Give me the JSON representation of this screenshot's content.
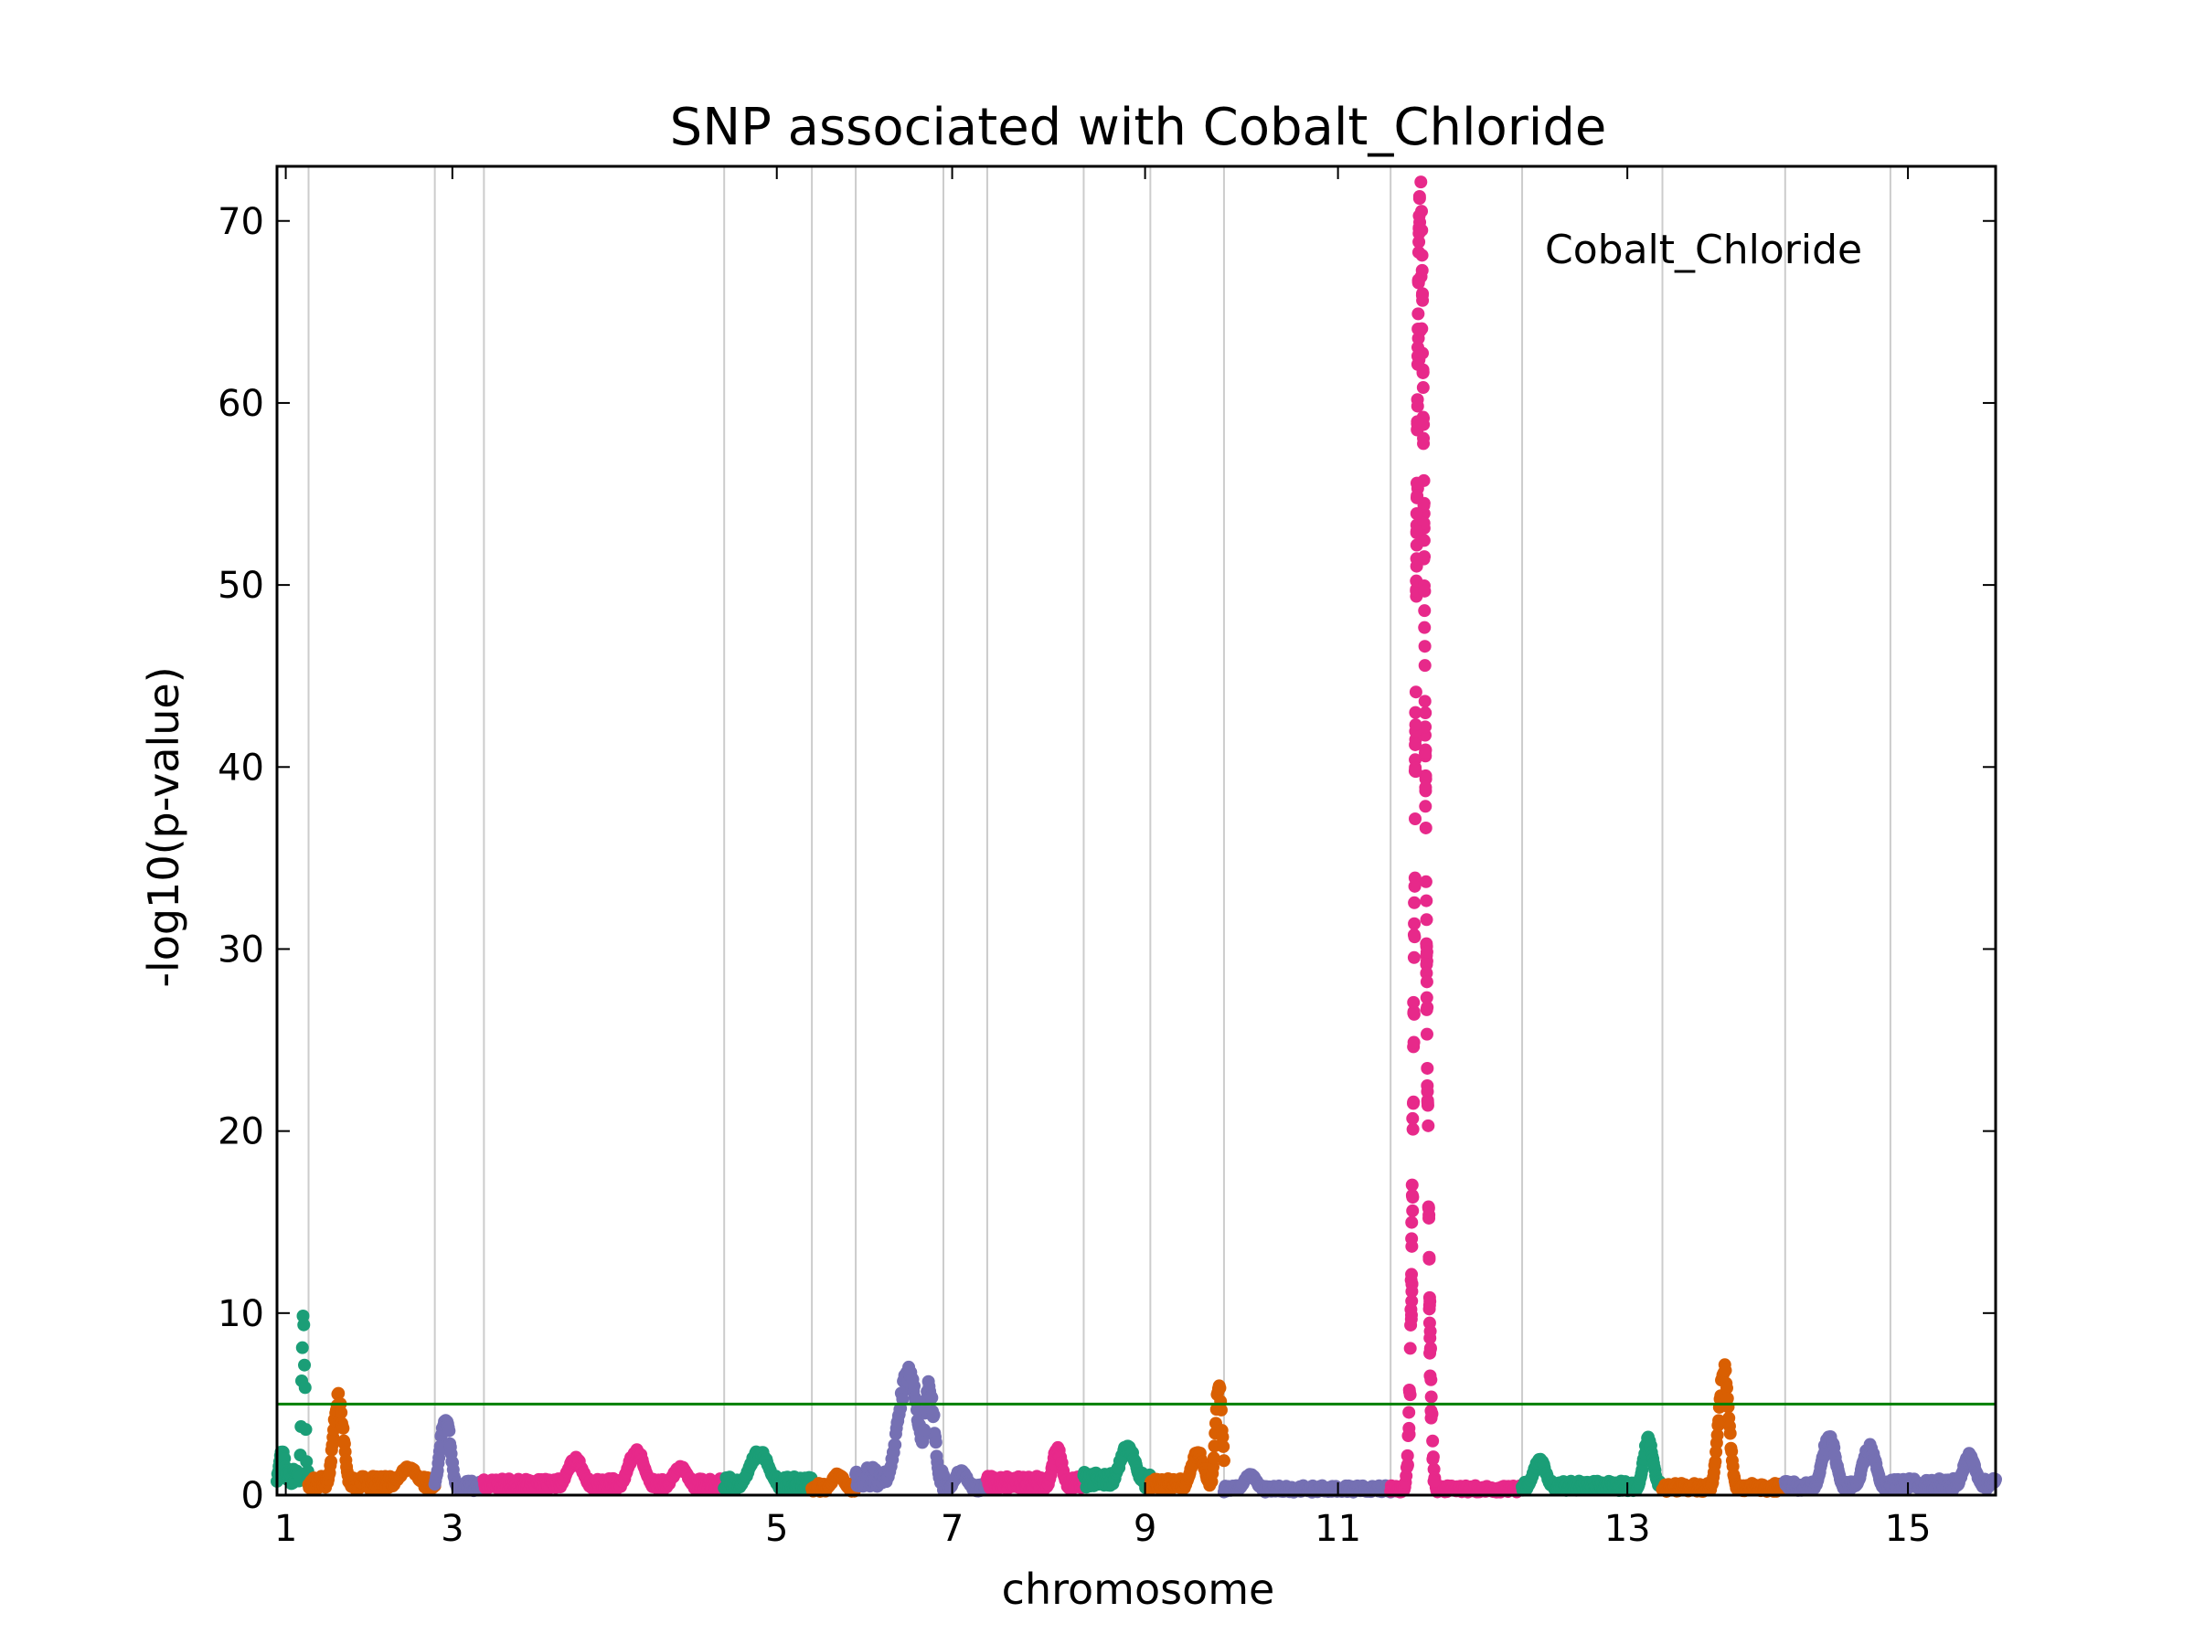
{
  "chart_data": {
    "type": "scatter",
    "title": "SNP associated with Cobalt_Chloride",
    "xlabel": "chromosome",
    "ylabel": "-log10(p-value)",
    "legend_label": "Cobalt_Chloride",
    "legend_position": "top-right",
    "ylim": [
      0,
      73
    ],
    "yticks": [
      0,
      10,
      20,
      30,
      40,
      50,
      60,
      70
    ],
    "xticks": [
      {
        "label": "1",
        "pos": 0.05
      },
      {
        "label": "3",
        "pos": 1.0
      },
      {
        "label": "5",
        "pos": 2.85
      },
      {
        "label": "7",
        "pos": 3.85
      },
      {
        "label": "9",
        "pos": 4.95
      },
      {
        "label": "11",
        "pos": 6.05
      },
      {
        "label": "13",
        "pos": 7.7
      },
      {
        "label": "15",
        "pos": 9.3
      }
    ],
    "xlim": [
      0,
      9.8
    ],
    "chromosome_boundaries": [
      0.18,
      0.9,
      1.18,
      2.55,
      3.05,
      3.3,
      3.8,
      4.05,
      4.6,
      4.98,
      5.4,
      6.35,
      7.1,
      7.9,
      8.6,
      9.2
    ],
    "threshold": 5,
    "colors": [
      "#1b9e77",
      "#d95f02",
      "#7570b3",
      "#e7298a"
    ],
    "chromosomes": [
      {
        "start": 0.0,
        "end": 0.18,
        "color": 0,
        "base": 1.2,
        "peaks": [
          {
            "x": 0.15,
            "y": 10.2,
            "w": 0.01
          },
          {
            "x": 0.03,
            "y": 2.5,
            "w": 0.02
          }
        ]
      },
      {
        "start": 0.18,
        "end": 0.9,
        "color": 1,
        "base": 0.8,
        "peaks": [
          {
            "x": 0.35,
            "y": 5.7,
            "w": 0.03
          },
          {
            "x": 0.75,
            "y": 1.6,
            "w": 0.06
          }
        ]
      },
      {
        "start": 0.9,
        "end": 1.18,
        "color": 2,
        "base": 0.6,
        "peaks": [
          {
            "x": 0.96,
            "y": 4.6,
            "w": 0.03
          }
        ]
      },
      {
        "start": 1.18,
        "end": 2.55,
        "color": 3,
        "base": 0.7,
        "peaks": [
          {
            "x": 1.7,
            "y": 2.1,
            "w": 0.05
          },
          {
            "x": 2.05,
            "y": 2.6,
            "w": 0.05
          },
          {
            "x": 2.3,
            "y": 1.6,
            "w": 0.05
          }
        ]
      },
      {
        "start": 2.55,
        "end": 3.05,
        "color": 0,
        "base": 0.8,
        "peaks": [
          {
            "x": 2.75,
            "y": 2.5,
            "w": 0.06
          }
        ]
      },
      {
        "start": 3.05,
        "end": 3.3,
        "color": 1,
        "base": 0.5,
        "peaks": [
          {
            "x": 3.2,
            "y": 1.2,
            "w": 0.04
          }
        ]
      },
      {
        "start": 3.3,
        "end": 3.8,
        "color": 2,
        "base": 1.2,
        "peaks": [
          {
            "x": 3.6,
            "y": 7.1,
            "w": 0.06
          },
          {
            "x": 3.72,
            "y": 6.4,
            "w": 0.03
          }
        ]
      },
      {
        "start": 3.8,
        "end": 4.05,
        "color": 2,
        "base": 0.5,
        "peaks": [
          {
            "x": 3.9,
            "y": 1.4,
            "w": 0.04
          }
        ]
      },
      {
        "start": 4.05,
        "end": 4.6,
        "color": 3,
        "base": 0.8,
        "peaks": [
          {
            "x": 4.45,
            "y": 2.7,
            "w": 0.03
          }
        ]
      },
      {
        "start": 4.6,
        "end": 4.98,
        "color": 0,
        "base": 1.0,
        "peaks": [
          {
            "x": 4.85,
            "y": 2.8,
            "w": 0.05
          }
        ]
      },
      {
        "start": 4.98,
        "end": 5.4,
        "color": 1,
        "base": 0.7,
        "peaks": [
          {
            "x": 5.25,
            "y": 2.5,
            "w": 0.04
          },
          {
            "x": 5.37,
            "y": 6.3,
            "w": 0.02
          }
        ]
      },
      {
        "start": 5.4,
        "end": 6.35,
        "color": 2,
        "base": 0.4,
        "peaks": [
          {
            "x": 5.55,
            "y": 1.2,
            "w": 0.04
          }
        ]
      },
      {
        "start": 6.35,
        "end": 7.1,
        "color": 3,
        "base": 0.4,
        "peaks": [
          {
            "x": 6.52,
            "y": 72.5,
            "w": 0.028
          },
          {
            "x": 6.22,
            "y": 1.8,
            "w": 0.03
          }
        ]
      },
      {
        "start": 7.1,
        "end": 7.9,
        "color": 0,
        "base": 0.6,
        "peaks": [
          {
            "x": 7.2,
            "y": 2.0,
            "w": 0.04
          },
          {
            "x": 7.82,
            "y": 3.2,
            "w": 0.03
          }
        ]
      },
      {
        "start": 7.9,
        "end": 8.6,
        "color": 1,
        "base": 0.5,
        "peaks": [
          {
            "x": 8.25,
            "y": 7.5,
            "w": 0.03
          }
        ]
      },
      {
        "start": 8.6,
        "end": 9.2,
        "color": 2,
        "base": 0.6,
        "peaks": [
          {
            "x": 8.85,
            "y": 3.4,
            "w": 0.04
          },
          {
            "x": 9.08,
            "y": 2.8,
            "w": 0.04
          }
        ]
      },
      {
        "start": 9.2,
        "end": 9.8,
        "color": 2,
        "base": 0.7,
        "peaks": [
          {
            "x": 9.65,
            "y": 2.3,
            "w": 0.04
          }
        ]
      }
    ]
  }
}
